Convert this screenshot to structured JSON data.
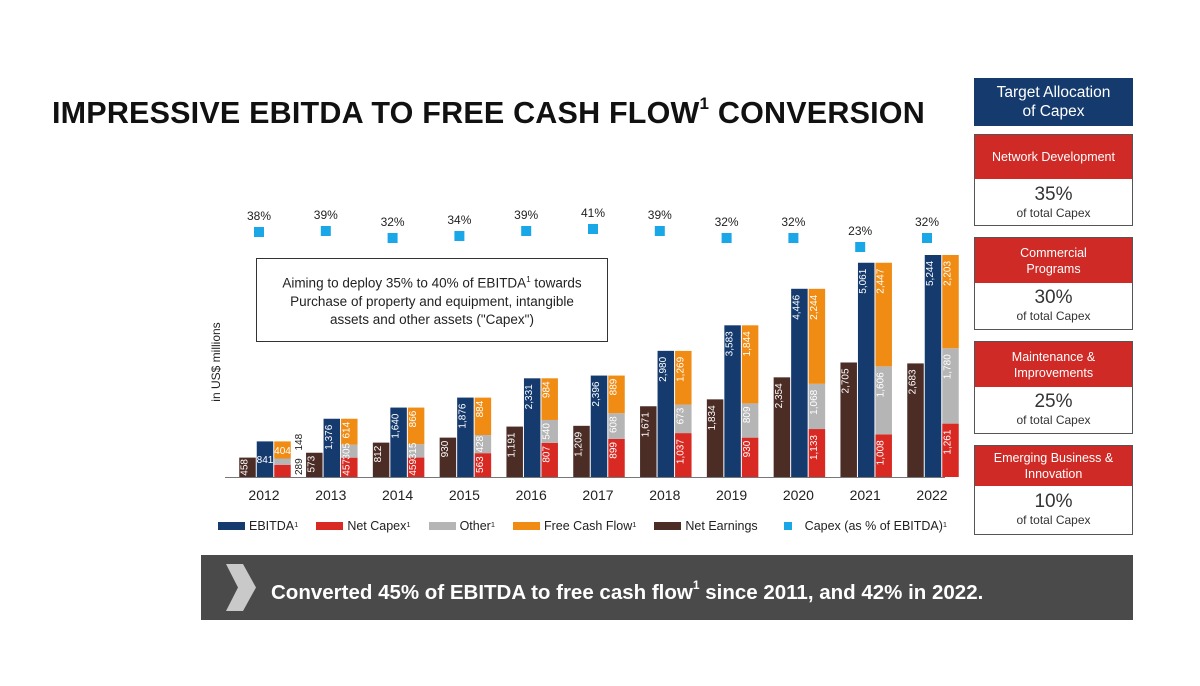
{
  "title": {
    "main": "IMPRESSIVE EBITDA TO FREE CASH FLOW",
    "sup": "1",
    "tail": " CONVERSION"
  },
  "chart_data": {
    "type": "bar",
    "title": "IMPRESSIVE EBITDA TO FREE CASH FLOW¹ CONVERSION",
    "ylabel": "in US$ millions",
    "categories": [
      "2012",
      "2013",
      "2014",
      "2015",
      "2016",
      "2017",
      "2018",
      "2019",
      "2020",
      "2021",
      "2022"
    ],
    "series": [
      {
        "name": "Net Earnings",
        "color": "#4b2d26",
        "values": [
          458,
          573,
          812,
          930,
          1191,
          1209,
          1671,
          1834,
          2354,
          2705,
          2683
        ]
      },
      {
        "name": "EBITDA¹",
        "color": "#153a6e",
        "values": [
          841,
          1376,
          1640,
          1876,
          2331,
          2396,
          2980,
          3583,
          4446,
          5061,
          5244
        ]
      },
      {
        "name": "Net Capex¹",
        "color": "#d82a23",
        "values": [
          289,
          457,
          459,
          563,
          807,
          899,
          1037,
          930,
          1133,
          1008,
          1261
        ]
      },
      {
        "name": "Other¹",
        "color": "#b5b5b5",
        "values": [
          148,
          305,
          315,
          428,
          540,
          608,
          673,
          809,
          1068,
          1606,
          1780
        ]
      },
      {
        "name": "Free Cash Flow¹",
        "color": "#f08c14",
        "values": [
          404,
          614,
          866,
          884,
          984,
          889,
          1269,
          1844,
          2244,
          2447,
          2203
        ]
      }
    ],
    "capex_pct": {
      "name": "Capex (as % of EBITDA)¹",
      "color": "#1aa7e8",
      "values": [
        38,
        39,
        32,
        34,
        39,
        41,
        39,
        32,
        32,
        23,
        32
      ],
      "labels": [
        "38%",
        "39%",
        "32%",
        "34%",
        "39%",
        "41%",
        "39%",
        "32%",
        "32%",
        "23%",
        "32%"
      ]
    },
    "ylim": [
      0,
      5500
    ]
  },
  "callout": {
    "l1": "Aiming to deploy 35% to 40% of EBITDA",
    "sup": "1",
    "l1b": " towards",
    "l2": "Purchase of property and equipment, intangible",
    "l3": "assets and other assets (\"Capex\")"
  },
  "legend": [
    {
      "label": "EBITDA",
      "sup": "1",
      "color": "#153a6e",
      "kind": "bar"
    },
    {
      "label": "Net Capex",
      "sup": "1",
      "color": "#d82a23",
      "kind": "bar"
    },
    {
      "label": "Other",
      "sup": "1",
      "color": "#b5b5b5",
      "kind": "bar"
    },
    {
      "label": "Free Cash Flow",
      "sup": "1",
      "color": "#f08c14",
      "kind": "bar"
    },
    {
      "label": "Net Earnings",
      "sup": "",
      "color": "#4b2d26",
      "kind": "bar"
    },
    {
      "label": "Capex (as % of EBITDA)",
      "sup": "1",
      "color": "#1aa7e8",
      "kind": "square"
    }
  ],
  "panel": {
    "head_l1": "Target Allocation",
    "head_l2": "of Capex",
    "items": [
      {
        "l1": "Network Development",
        "l2": "",
        "pct": "35%",
        "sub": "of total Capex"
      },
      {
        "l1": "Commercial",
        "l2": "Programs",
        "pct": "30%",
        "sub": "of total Capex"
      },
      {
        "l1": "Maintenance &",
        "l2": "Improvements",
        "pct": "25%",
        "sub": "of total Capex"
      },
      {
        "l1": "Emerging Business &",
        "l2": "Innovation",
        "pct": "10%",
        "sub": "of total Capex"
      }
    ]
  },
  "banner": {
    "text": "Converted 45% of EBITDA to free cash flow",
    "sup": "1",
    "tail": " since 2011, and 42% in 2022."
  }
}
